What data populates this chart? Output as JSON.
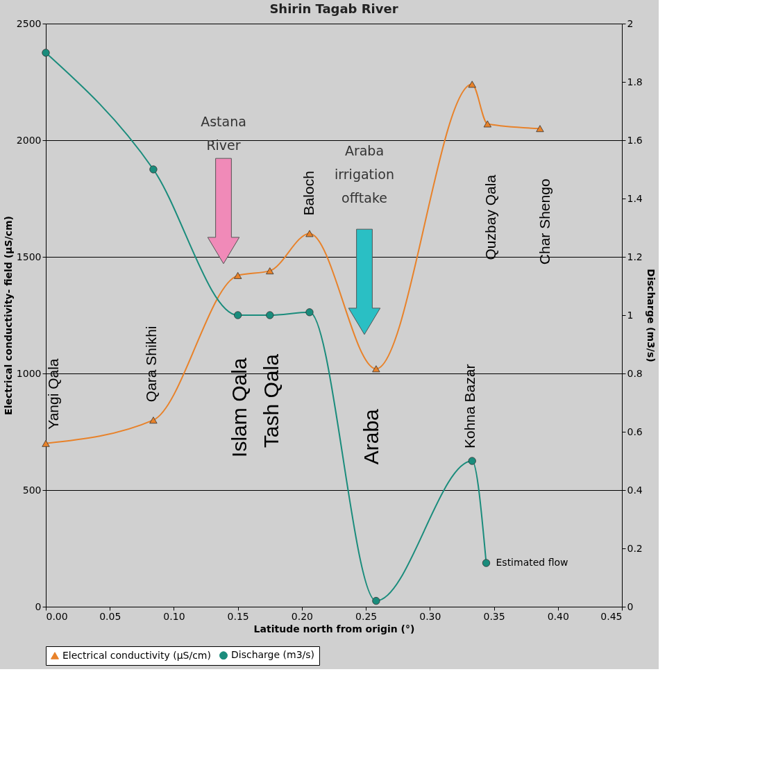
{
  "chart_data": {
    "type": "line",
    "title": "Shirin Tagab River",
    "xlabel": "Latitude north from origin (°)",
    "ylabel": "Electrical conductivity- field (µS/cm)",
    "y2label": "Discharge (m3/s)",
    "xlim": [
      0,
      0.45
    ],
    "xticks": [
      {
        "value": 0,
        "label": "0.00"
      },
      {
        "value": 0.05,
        "label": "0.05"
      },
      {
        "value": 0.1,
        "label": "0.10"
      },
      {
        "value": 0.15,
        "label": "0.15"
      },
      {
        "value": 0.2,
        "label": "0.20"
      },
      {
        "value": 0.25,
        "label": "0.25"
      },
      {
        "value": 0.3,
        "label": "0.30"
      },
      {
        "value": 0.35,
        "label": "0.35"
      },
      {
        "value": 0.4,
        "label": "0.40"
      },
      {
        "value": 0.45,
        "label": "0.45"
      }
    ],
    "ylim": [
      0,
      2500
    ],
    "yticks": [
      0,
      500,
      1000,
      1500,
      2000,
      2500
    ],
    "y2lim": [
      0,
      2
    ],
    "y2ticks": [
      0,
      0.2,
      0.4,
      0.6,
      0.8,
      1,
      1.2,
      1.4,
      1.6,
      1.8,
      2
    ],
    "grid": "y",
    "legend": "bottom",
    "series": [
      {
        "name": "Electrical conductivity (µS/cm)",
        "color": "#e8822a",
        "marker": "triangle",
        "x": [
          0,
          0.084,
          0.15,
          0.175,
          0.206,
          0.258,
          0.333,
          0.345,
          0.386
        ],
        "values": [
          700,
          800,
          1420,
          1440,
          1600,
          1020,
          2240,
          2070,
          2050
        ]
      },
      {
        "name": "Discharge (m3/s)",
        "color": "#1a8c7c",
        "marker": "circle",
        "axis": "y2",
        "x": [
          0,
          0.084,
          0.15,
          0.175,
          0.206,
          0.258,
          0.333,
          0.344
        ],
        "values": [
          1.9,
          1.5,
          1.0,
          1.0,
          1.01,
          0.02,
          0.5,
          0.15
        ]
      }
    ],
    "annotations": [
      "Yangi Qala",
      "Qara Shikhi",
      "Islam Qala",
      "Tash Qala",
      "Baloch",
      "Araba",
      "Kohna Bazar",
      "Quzbay Qala",
      "Char Shengo",
      "Estimated flow",
      "Astana River",
      "Araba irrigation offtake"
    ]
  }
}
